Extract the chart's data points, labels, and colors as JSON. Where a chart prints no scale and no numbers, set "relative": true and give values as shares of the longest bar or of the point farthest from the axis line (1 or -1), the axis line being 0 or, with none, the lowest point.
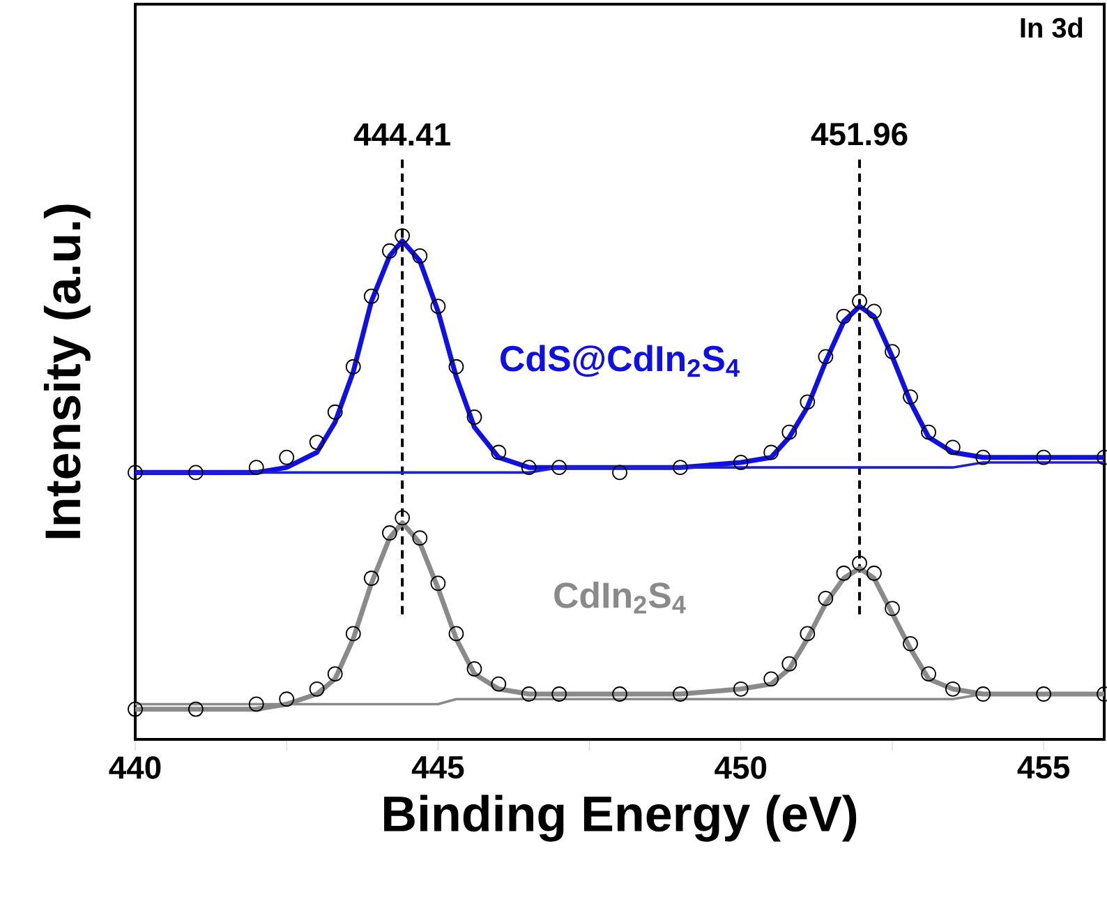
{
  "chart_data": {
    "type": "line",
    "relative": true,
    "xlabel": "Binding Energy (eV)",
    "ylabel": "Intensity (a.u.)",
    "annotations": [
      "In 3d"
    ],
    "xlim": [
      440,
      456
    ],
    "xticks": [
      440,
      {
        "value": 442.5,
        "label": null
      },
      445,
      {
        "value": 447.5,
        "label": null
      },
      450,
      {
        "value": 452.5,
        "label": null
      },
      455
    ],
    "tick_labels": "x",
    "ref_lines": [
      {
        "axis": "x",
        "value": 444.41,
        "label": "444.41",
        "color": "#000000",
        "line_style": "dashed"
      },
      {
        "axis": "x",
        "value": 451.96,
        "label": "451.96",
        "color": "#000000",
        "line_style": "dashed"
      }
    ],
    "x": [
      440,
      441,
      442,
      442.5,
      443,
      443.3,
      443.6,
      443.9,
      444.2,
      444.41,
      444.7,
      445,
      445.3,
      445.6,
      446,
      446.5,
      447,
      448,
      449,
      450,
      450.5,
      450.8,
      451.1,
      451.4,
      451.7,
      451.96,
      452.2,
      452.5,
      452.8,
      453.1,
      453.5,
      454,
      455,
      456
    ],
    "series": [
      {
        "type": "scatter",
        "marker": "circle",
        "color": "#000000",
        "values": [
          0.53,
          0.53,
          0.54,
          0.56,
          0.59,
          0.65,
          0.74,
          0.88,
          0.97,
          1.0,
          0.96,
          0.86,
          0.74,
          0.64,
          0.57,
          0.54,
          0.54,
          0.53,
          0.54,
          0.55,
          0.57,
          0.61,
          0.67,
          0.76,
          0.84,
          0.87,
          0.85,
          0.77,
          0.68,
          0.61,
          0.58,
          0.56,
          0.56,
          0.56
        ]
      },
      {
        "marker": "none",
        "name": "CdS@CdIn$_{2}$S$_{4}$",
        "color": "#1010e0",
        "values": [
          0.53,
          0.53,
          0.53,
          0.54,
          0.57,
          0.63,
          0.73,
          0.87,
          0.96,
          0.99,
          0.95,
          0.85,
          0.72,
          0.62,
          0.56,
          0.54,
          0.54,
          0.54,
          0.54,
          0.55,
          0.56,
          0.6,
          0.66,
          0.75,
          0.83,
          0.86,
          0.84,
          0.76,
          0.67,
          0.6,
          0.57,
          0.56,
          0.56,
          0.56
        ]
      },
      {
        "marker": "none",
        "color": "#2020d0",
        "values": [
          0.53,
          0.53,
          0.53,
          0.53,
          0.53,
          0.53,
          0.53,
          0.53,
          0.53,
          0.53,
          0.53,
          0.53,
          0.53,
          0.53,
          0.53,
          0.53,
          0.54,
          0.54,
          0.54,
          0.54,
          0.54,
          0.54,
          0.54,
          0.54,
          0.54,
          0.54,
          0.54,
          0.54,
          0.54,
          0.54,
          0.54,
          0.55,
          0.55,
          0.55
        ]
      },
      {
        "type": "scatter",
        "marker": "circle",
        "color": "#000000",
        "values": [
          0.06,
          0.06,
          0.07,
          0.08,
          0.1,
          0.13,
          0.21,
          0.32,
          0.41,
          0.44,
          0.4,
          0.31,
          0.21,
          0.14,
          0.11,
          0.09,
          0.09,
          0.09,
          0.09,
          0.1,
          0.12,
          0.15,
          0.21,
          0.28,
          0.33,
          0.35,
          0.33,
          0.26,
          0.19,
          0.13,
          0.1,
          0.09,
          0.09,
          0.09
        ]
      },
      {
        "marker": "none",
        "name": "CdIn$_{2}$S$_{4}$",
        "color": "#8a8a8a",
        "values": [
          0.06,
          0.06,
          0.06,
          0.07,
          0.09,
          0.12,
          0.2,
          0.31,
          0.4,
          0.43,
          0.39,
          0.3,
          0.2,
          0.13,
          0.1,
          0.09,
          0.09,
          0.09,
          0.09,
          0.1,
          0.11,
          0.14,
          0.2,
          0.27,
          0.32,
          0.34,
          0.32,
          0.25,
          0.18,
          0.12,
          0.1,
          0.09,
          0.09,
          0.09
        ]
      },
      {
        "marker": "none",
        "color": "#8a8a8a",
        "values": [
          0.07,
          0.07,
          0.07,
          0.07,
          0.07,
          0.07,
          0.07,
          0.07,
          0.07,
          0.07,
          0.07,
          0.07,
          0.08,
          0.08,
          0.08,
          0.08,
          0.08,
          0.08,
          0.08,
          0.08,
          0.08,
          0.08,
          0.08,
          0.08,
          0.08,
          0.08,
          0.08,
          0.08,
          0.08,
          0.08,
          0.08,
          0.09,
          0.09,
          0.09
        ]
      }
    ]
  }
}
